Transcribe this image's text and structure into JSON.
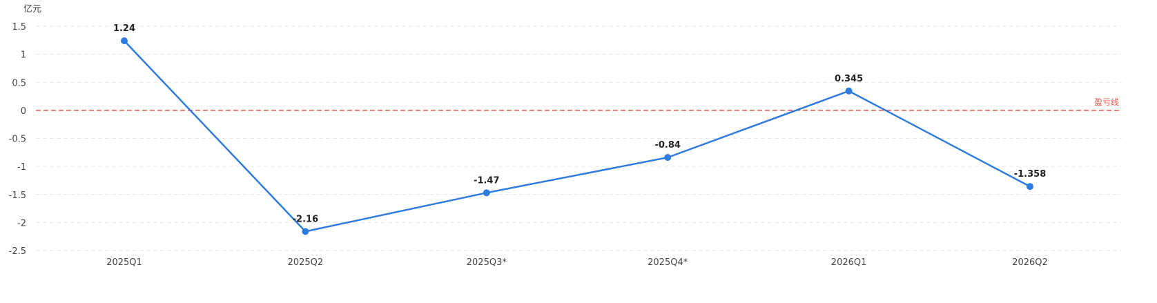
{
  "chart_data": {
    "type": "line",
    "unit_label": "亿元",
    "categories": [
      "2025Q1",
      "2025Q2",
      "2025Q3*",
      "2025Q4*",
      "2026Q1",
      "2026Q2"
    ],
    "values": [
      1.24,
      -2.16,
      -1.47,
      -0.84,
      0.345,
      -1.358
    ],
    "data_labels": [
      "1.24",
      "-2.16",
      "-1.47",
      "-0.84",
      "0.345",
      "-1.358"
    ],
    "y_ticks": [
      "1.5",
      "1",
      "0.5",
      "0",
      "-0.5",
      "-1",
      "-1.5",
      "-2",
      "-2.5"
    ],
    "ylim": [
      -2.5,
      1.5
    ],
    "grid": "horizontal-dashed",
    "reference_line": {
      "value": 0,
      "label": "盈亏线",
      "color": "#e8574b"
    },
    "line_color": "#2f7be0",
    "grid_color": "#e6e6e6"
  }
}
